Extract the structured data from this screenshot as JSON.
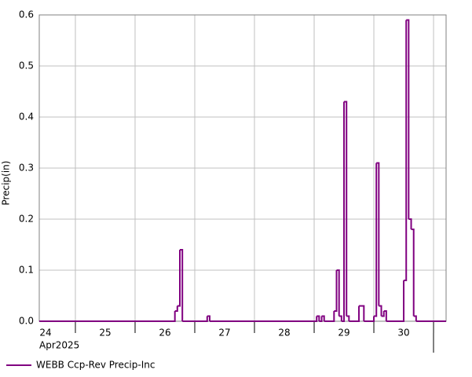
{
  "chart_data": {
    "type": "step",
    "y_label": "Precip(in)",
    "x_period_label": "Apr2025",
    "xlim": [
      24.395,
      31.21
    ],
    "xticks": [
      25,
      26,
      27,
      28,
      29,
      30,
      31
    ],
    "x_tick_labels": [
      "24",
      "25",
      "26",
      "27",
      "28",
      "29",
      "30"
    ],
    "ylim": [
      0,
      0.6
    ],
    "yticks": [
      {
        "value": 0,
        "label": "0.0"
      },
      0.1,
      0.2,
      0.3,
      0.4,
      0.5,
      0.6
    ],
    "grid": true,
    "series": [
      {
        "name": "WEBB Ccp-Rev Precip-Inc",
        "color": "#800080",
        "x": [
          24.395,
          26.667,
          26.708,
          26.75,
          26.792,
          27.208,
          27.25,
          29.042,
          29.083,
          29.125,
          29.167,
          29.333,
          29.375,
          29.417,
          29.458,
          29.5,
          29.542,
          29.583,
          29.75,
          29.833,
          30.0,
          30.042,
          30.083,
          30.125,
          30.167,
          30.208,
          30.5,
          30.542,
          30.583,
          30.625,
          30.667,
          30.708
        ],
        "values": [
          0,
          0.02,
          0.03,
          0.14,
          0,
          0.01,
          0,
          0.01,
          0,
          0.01,
          0,
          0.02,
          0.1,
          0.01,
          0,
          0.43,
          0.01,
          0,
          0.03,
          0,
          0.01,
          0.31,
          0.03,
          0.01,
          0.02,
          0,
          0.08,
          0.59,
          0.2,
          0.18,
          0.01,
          0
        ]
      }
    ]
  }
}
